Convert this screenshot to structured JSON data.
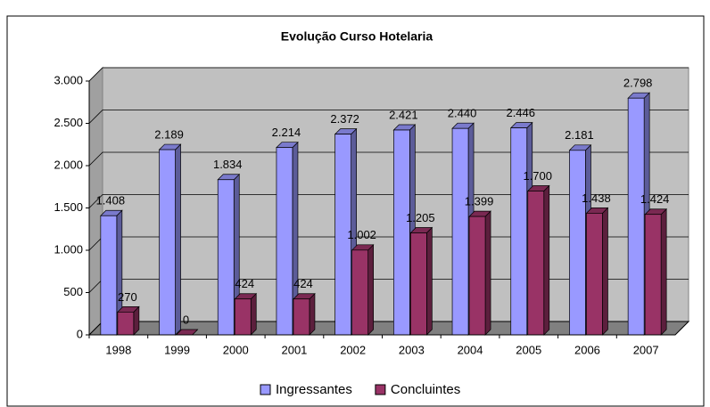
{
  "chart_data": {
    "type": "bar3d",
    "title": "Evolução Curso Hotelaria",
    "categories": [
      "1998",
      "1999",
      "2000",
      "2001",
      "2002",
      "2003",
      "2004",
      "2005",
      "2006",
      "2007"
    ],
    "series": [
      {
        "name": "Ingressantes",
        "color": "#9999ff",
        "values": [
          1408,
          2189,
          1834,
          2214,
          2372,
          2421,
          2440,
          2446,
          2181,
          2798
        ],
        "value_labels": [
          "1.408",
          "2.189",
          "1.834",
          "2.214",
          "2.372",
          "2.421",
          "2.440",
          "2.446",
          "2.181",
          "2.798"
        ]
      },
      {
        "name": "Concluintes",
        "color": "#993366",
        "values": [
          270,
          0,
          424,
          424,
          1002,
          1205,
          1399,
          1700,
          1438,
          1424
        ],
        "value_labels": [
          "270",
          "0",
          "424",
          "424",
          "1.002",
          "1.205",
          "1.399",
          "1.700",
          "1.438",
          "1.424"
        ]
      }
    ],
    "ylim": [
      0,
      3000
    ],
    "yticks": [
      0,
      500,
      {
        "value": 1000,
        "label": "1.000"
      },
      {
        "value": 1500,
        "label": "1.500"
      },
      {
        "value": 2000,
        "label": "2.000"
      },
      {
        "value": 2500,
        "label": "2.500"
      },
      {
        "value": 3000,
        "label": "3.000"
      }
    ],
    "grid": true,
    "legend": "bottom"
  }
}
